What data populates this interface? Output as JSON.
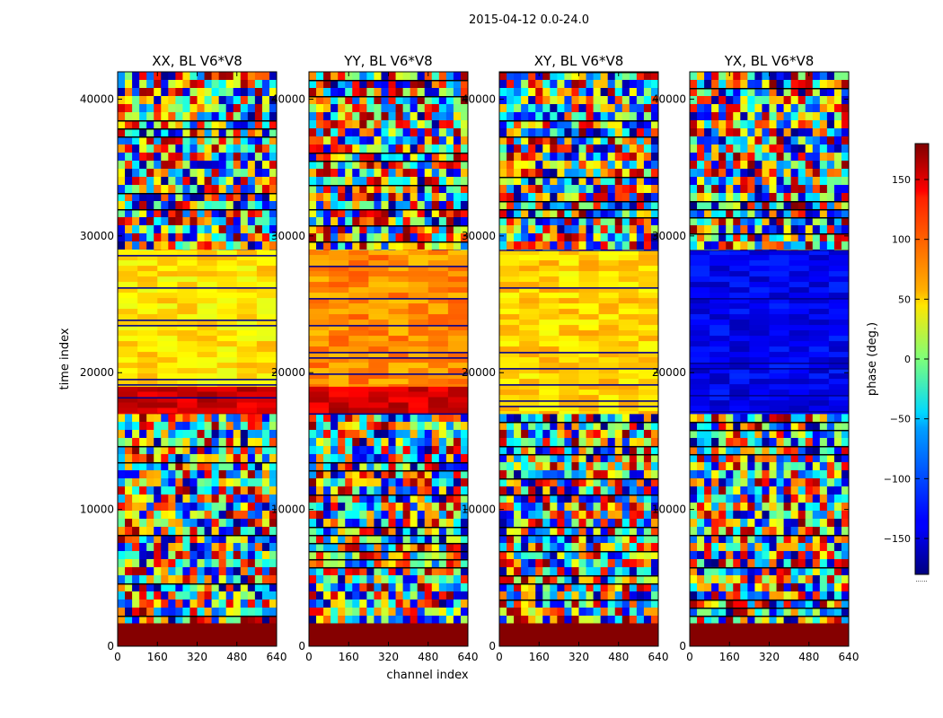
{
  "figure": {
    "suptitle": "2015-04-12 0.0-24.0",
    "xlabel": "channel index",
    "ylabel": "time index"
  },
  "colorbar": {
    "label": "phase (deg.)",
    "ticks": [
      "150",
      "100",
      "50",
      "0",
      "−50",
      "−100",
      "−150"
    ],
    "tick_values": [
      150,
      100,
      50,
      0,
      -50,
      -100,
      -150
    ],
    "range": [
      -180,
      180
    ],
    "colormap": "jet",
    "extend_marker": "......"
  },
  "chart_data": [
    {
      "type": "heatmap",
      "title": "XX, BL V6*V8",
      "xlabel": "",
      "ylabel": "time index",
      "xlim": [
        0,
        640
      ],
      "ylim": [
        0,
        42000
      ],
      "xticks": [
        "0",
        "160",
        "320",
        "480",
        "640"
      ],
      "yticks": [
        "0",
        "10000",
        "20000",
        "30000",
        "40000"
      ],
      "value_range": [
        -180,
        180
      ],
      "bands": [
        {
          "t": [
            0,
            1700
          ],
          "phase": 178,
          "pattern": "solid"
        },
        {
          "t": [
            1700,
            17000
          ],
          "phase": 0,
          "pattern": "noise"
        },
        {
          "t": [
            17000,
            19000
          ],
          "phase": 150,
          "pattern": "smooth"
        },
        {
          "t": [
            19000,
            29000
          ],
          "phase": 55,
          "pattern": "smooth"
        },
        {
          "t": [
            29000,
            42000
          ],
          "phase": 0,
          "pattern": "noise"
        }
      ]
    },
    {
      "type": "heatmap",
      "title": "YY, BL V6*V8",
      "xlabel": "channel index",
      "ylabel": "",
      "xlim": [
        0,
        640
      ],
      "ylim": [
        0,
        42000
      ],
      "xticks": [
        "0",
        "160",
        "320",
        "480",
        "640"
      ],
      "yticks": [
        "0",
        "10000",
        "20000",
        "30000",
        "40000"
      ],
      "value_range": [
        -180,
        180
      ],
      "bands": [
        {
          "t": [
            0,
            1700
          ],
          "phase": 178,
          "pattern": "solid"
        },
        {
          "t": [
            1700,
            17000
          ],
          "phase": 0,
          "pattern": "noise"
        },
        {
          "t": [
            17000,
            19000
          ],
          "phase": 150,
          "pattern": "smooth"
        },
        {
          "t": [
            19000,
            29000
          ],
          "phase": 85,
          "pattern": "smooth"
        },
        {
          "t": [
            29000,
            42000
          ],
          "phase": 0,
          "pattern": "noise"
        }
      ]
    },
    {
      "type": "heatmap",
      "title": "XY, BL V6*V8",
      "xlabel": "",
      "ylabel": "",
      "xlim": [
        0,
        640
      ],
      "ylim": [
        0,
        42000
      ],
      "xticks": [
        "0",
        "160",
        "320",
        "480",
        "640"
      ],
      "yticks": [
        "0",
        "10000",
        "20000",
        "30000",
        "40000"
      ],
      "value_range": [
        -180,
        180
      ],
      "bands": [
        {
          "t": [
            0,
            1700
          ],
          "phase": 178,
          "pattern": "solid"
        },
        {
          "t": [
            1700,
            17000
          ],
          "phase": 0,
          "pattern": "noise"
        },
        {
          "t": [
            17000,
            29000
          ],
          "phase": 60,
          "pattern": "smooth"
        },
        {
          "t": [
            29000,
            42000
          ],
          "phase": 0,
          "pattern": "noise"
        }
      ]
    },
    {
      "type": "heatmap",
      "title": "YX, BL V6*V8",
      "xlabel": "",
      "ylabel": "",
      "xlim": [
        0,
        640
      ],
      "ylim": [
        0,
        42000
      ],
      "xticks": [
        "0",
        "160",
        "320",
        "480",
        "640"
      ],
      "yticks": [
        "0",
        "10000",
        "20000",
        "30000",
        "40000"
      ],
      "value_range": [
        -180,
        180
      ],
      "bands": [
        {
          "t": [
            0,
            1700
          ],
          "phase": 178,
          "pattern": "solid"
        },
        {
          "t": [
            1700,
            17000
          ],
          "phase": 0,
          "pattern": "noise"
        },
        {
          "t": [
            17000,
            29000
          ],
          "phase": -140,
          "pattern": "smooth"
        },
        {
          "t": [
            29000,
            42000
          ],
          "phase": 0,
          "pattern": "noise"
        }
      ]
    }
  ]
}
